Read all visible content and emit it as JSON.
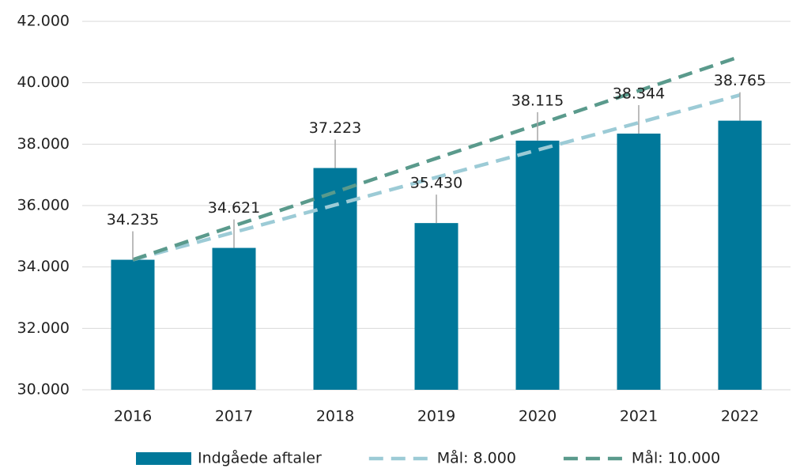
{
  "chart_data": {
    "type": "bar",
    "categories": [
      "2016",
      "2017",
      "2018",
      "2019",
      "2020",
      "2021",
      "2022"
    ],
    "series": [
      {
        "name": "Indgåede aftaler",
        "type": "bar",
        "color": "#00789a",
        "values": [
          34235,
          34621,
          37223,
          35430,
          38115,
          38344,
          38765
        ],
        "value_labels": [
          "34.235",
          "34.621",
          "37.223",
          "35.430",
          "38.115",
          "38.344",
          "38.765"
        ]
      },
      {
        "name": "Mål: 8.000",
        "type": "line",
        "dashed": true,
        "color": "#9ccbd6",
        "values": [
          34235,
          35130,
          36020,
          36920,
          37810,
          38700,
          39600
        ]
      },
      {
        "name": "Mål: 10.000",
        "type": "line",
        "dashed": true,
        "color": "#5a9a8c",
        "values": [
          34235,
          35340,
          36440,
          37540,
          38640,
          39740,
          40850
        ]
      }
    ],
    "ylim": [
      30000,
      42000
    ],
    "yticks": [
      {
        "value": 30000,
        "label": "30.000"
      },
      {
        "value": 32000,
        "label": "32.000"
      },
      {
        "value": 34000,
        "label": "34.000"
      },
      {
        "value": 36000,
        "label": "36.000"
      },
      {
        "value": 38000,
        "label": "38.000"
      },
      {
        "value": 40000,
        "label": "40.000"
      },
      {
        "value": 42000,
        "label": "42.000"
      }
    ],
    "grid": true,
    "legend": "bottom"
  }
}
